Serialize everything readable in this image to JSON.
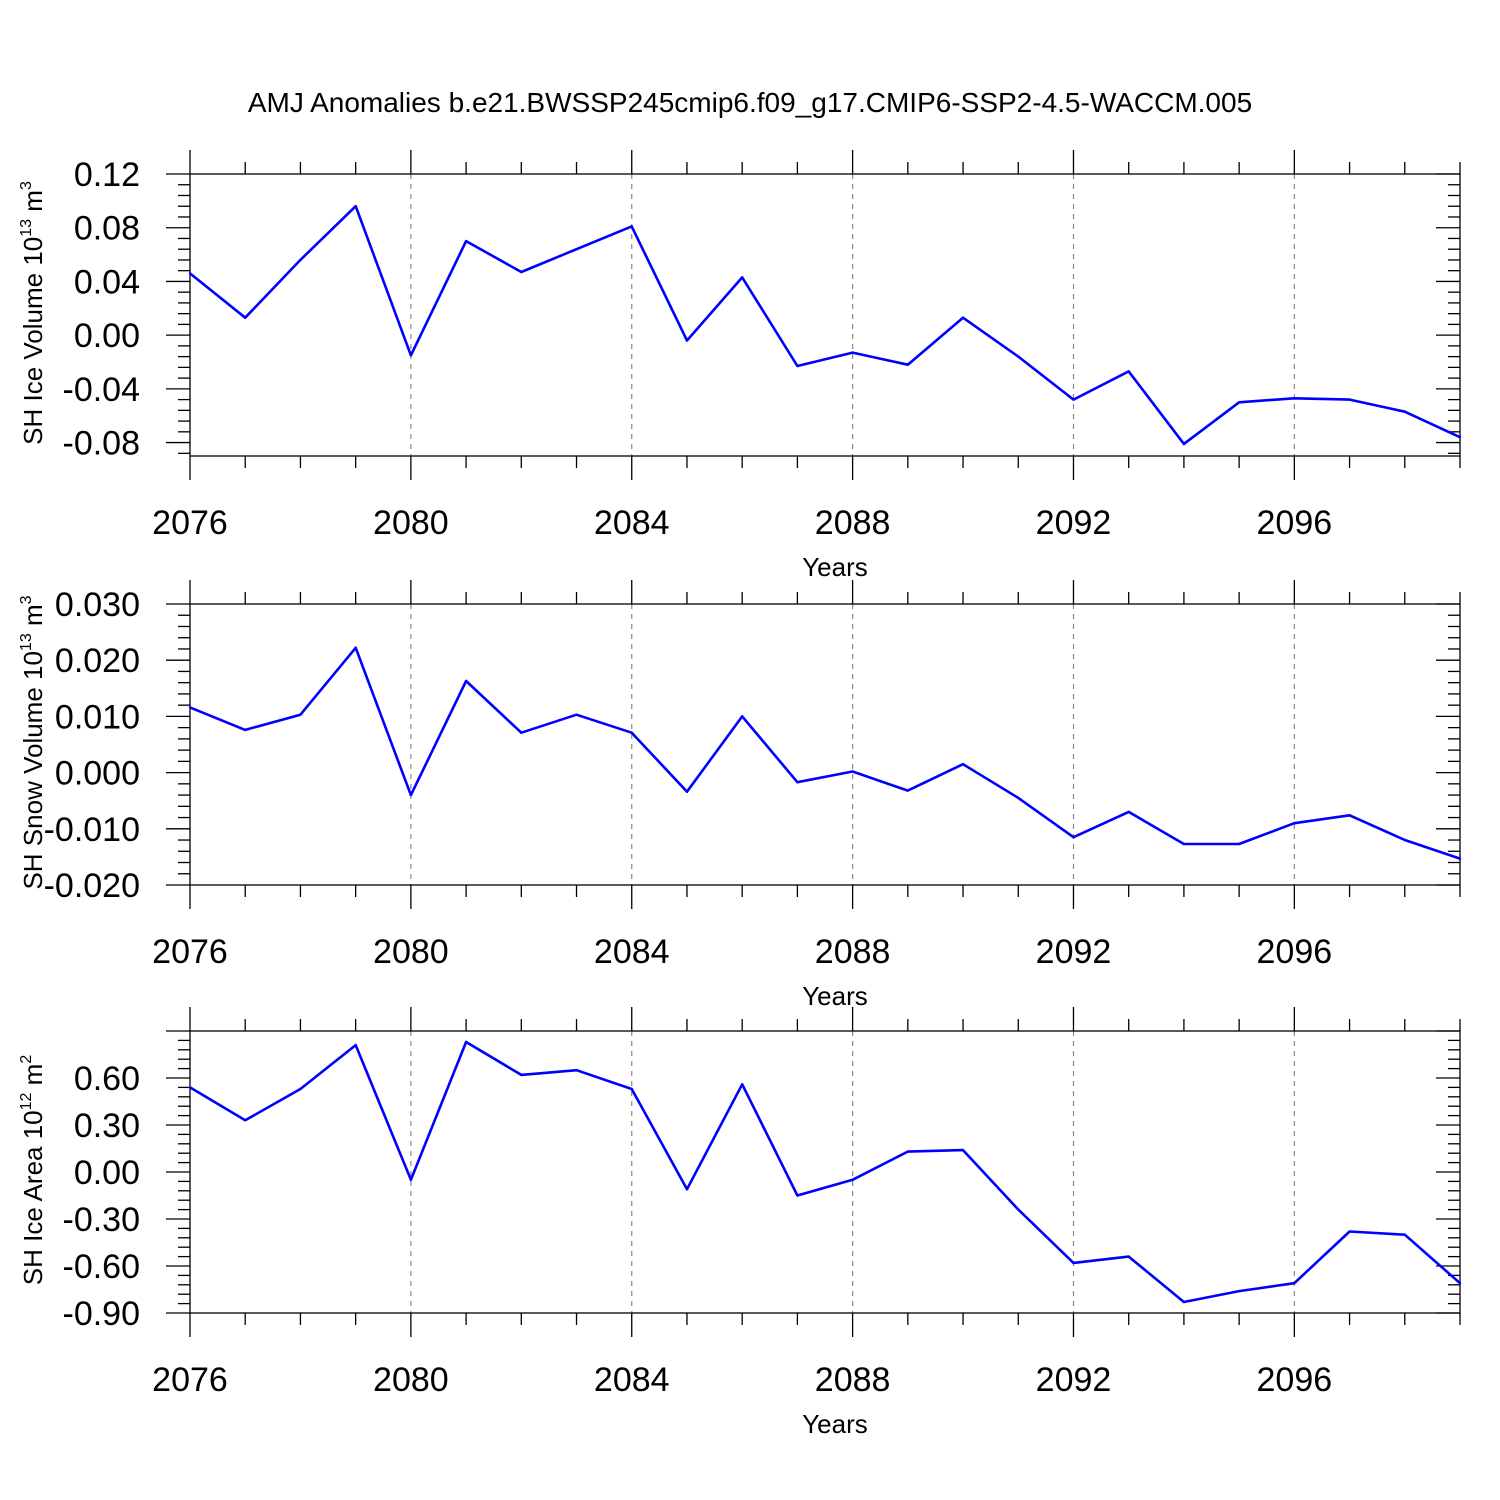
{
  "figure": {
    "title": "AMJ Anomalies b.e21.BWSSP245cmip6.f09_g17.CMIP6-SSP2-4.5-WACCM.005",
    "line_color": "#0000ff",
    "grid_color": "#888888"
  },
  "chart_data": [
    {
      "type": "line",
      "xlabel": "Years",
      "ylabel": {
        "prefix": "SH Ice Volume 10",
        "exponent": "13",
        "unit": " m",
        "unit_exponent": "3"
      },
      "xlim": [
        2076,
        2099
      ],
      "ylim": [
        -0.09,
        0.12
      ],
      "x_ticks": [
        "2076",
        "2080",
        "2084",
        "2088",
        "2092",
        "2096"
      ],
      "y_ticks": [
        "0.12",
        "0.08",
        "0.04",
        "0.00",
        "-0.04",
        "-0.08"
      ],
      "grid": "vertical dashed at labeled x ticks",
      "x": [
        2076,
        2077,
        2078,
        2079,
        2080,
        2081,
        2082,
        2083,
        2084,
        2085,
        2086,
        2087,
        2088,
        2089,
        2090,
        2091,
        2092,
        2093,
        2094,
        2095,
        2096,
        2097,
        2098,
        2099
      ],
      "values": [
        0.046,
        0.013,
        0.056,
        0.096,
        -0.015,
        0.07,
        0.047,
        0.064,
        0.081,
        -0.004,
        0.043,
        -0.023,
        -0.013,
        -0.022,
        0.013,
        -0.016,
        -0.048,
        -0.027,
        -0.081,
        -0.05,
        -0.047,
        -0.048,
        -0.057,
        -0.076
      ]
    },
    {
      "type": "line",
      "xlabel": "Years",
      "ylabel": {
        "prefix": "SH Snow Volume 10",
        "exponent": "13",
        "unit": " m",
        "unit_exponent": "3"
      },
      "xlim": [
        2076,
        2099
      ],
      "ylim": [
        -0.02,
        0.03
      ],
      "x_ticks": [
        "2076",
        "2080",
        "2084",
        "2088",
        "2092",
        "2096"
      ],
      "y_ticks": [
        "0.030",
        "0.020",
        "0.010",
        "0.000",
        "-0.010",
        "-0.020"
      ],
      "grid": "vertical dashed at labeled x ticks",
      "x": [
        2076,
        2077,
        2078,
        2079,
        2080,
        2081,
        2082,
        2083,
        2084,
        2085,
        2086,
        2087,
        2088,
        2089,
        2090,
        2091,
        2092,
        2093,
        2094,
        2095,
        2096,
        2097,
        2098,
        2099
      ],
      "values": [
        0.0116,
        0.0076,
        0.0103,
        0.0222,
        -0.004,
        0.0163,
        0.0071,
        0.0103,
        0.0071,
        -0.0034,
        0.01,
        -0.0017,
        0.0002,
        -0.0032,
        0.0015,
        -0.0045,
        -0.0115,
        -0.007,
        -0.0127,
        -0.0127,
        -0.009,
        -0.0076,
        -0.012,
        -0.0153
      ]
    },
    {
      "type": "line",
      "xlabel": "Years",
      "ylabel": {
        "prefix": "SH Ice Area 10",
        "exponent": "12",
        "unit": " m",
        "unit_exponent": "2"
      },
      "xlim": [
        2076,
        2099
      ],
      "ylim": [
        -0.9,
        0.9
      ],
      "x_ticks": [
        "2076",
        "2080",
        "2084",
        "2088",
        "2092",
        "2096"
      ],
      "y_ticks": [
        "0.60",
        "0.30",
        "0.00",
        "-0.30",
        "-0.60",
        "-0.90"
      ],
      "grid": "vertical dashed at labeled x ticks",
      "x": [
        2076,
        2077,
        2078,
        2079,
        2080,
        2081,
        2082,
        2083,
        2084,
        2085,
        2086,
        2087,
        2088,
        2089,
        2090,
        2091,
        2092,
        2093,
        2094,
        2095,
        2096,
        2097,
        2098,
        2099
      ],
      "values": [
        0.54,
        0.33,
        0.53,
        0.81,
        -0.05,
        0.83,
        0.62,
        0.65,
        0.53,
        -0.11,
        0.56,
        -0.15,
        -0.05,
        0.13,
        0.14,
        -0.24,
        -0.58,
        -0.54,
        -0.83,
        -0.76,
        -0.71,
        -0.38,
        -0.4,
        -0.71
      ]
    }
  ]
}
